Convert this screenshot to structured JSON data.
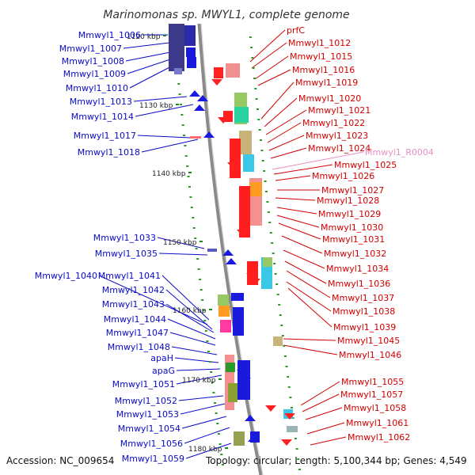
{
  "title": "Marinomonas sp. MWYL1, complete genome",
  "footer": {
    "accession": "Accession: NC_009654",
    "topology": "Topology: circular; Length: 5,100,344 bp; Genes: 4,549"
  },
  "colors": {
    "backbone": "#8a8a8a",
    "left_labels": "#0a0ac8",
    "right_labels": "#d20000",
    "pseudo_label": "#e88fbe"
  },
  "scale_labels": [
    "1120 kbp",
    "1130 kbp",
    "1140 kbp",
    "1150 kbp",
    "1160 kbp",
    "1170 kbp",
    "1180 kbp"
  ],
  "left_genes": [
    "Mmwyl1_1006",
    "Mmwyl1_1007",
    "Mmwyl1_1008",
    "Mmwyl1_1009",
    "Mmwyl1_1010",
    "Mmwyl1_1013",
    "Mmwyl1_1014",
    "Mmwyl1_1017",
    "Mmwyl1_1018",
    "Mmwyl1_1033",
    "Mmwyl1_1035",
    "Mmwyl1_1040",
    "Mmwyl1_1041",
    "Mmwyl1_1042",
    "Mmwyl1_1043",
    "Mmwyl1_1044",
    "Mmwyl1_1047",
    "Mmwyl1_1048",
    "apaH",
    "apaG",
    "Mmwyl1_1051",
    "Mmwyl1_1052",
    "Mmwyl1_1053",
    "Mmwyl1_1054",
    "Mmwyl1_1056",
    "Mmwyl1_1059"
  ],
  "right_genes": [
    "prfC",
    "Mmwyl1_1012",
    "Mmwyl1_1015",
    "Mmwyl1_1016",
    "Mmwyl1_1019",
    "Mmwyl1_1020",
    "Mmwyl1_1021",
    "Mmwyl1_1022",
    "Mmwyl1_1023",
    "Mmwyl1_1024",
    "Mmwyl1_R0004",
    "Mmwyl1_1025",
    "Mmwyl1_1026",
    "Mmwyl1_1027",
    "Mmwyl1_1028",
    "Mmwyl1_1029",
    "Mmwyl1_1030",
    "Mmwyl1_1031",
    "Mmwyl1_1032",
    "Mmwyl1_1034",
    "Mmwyl1_1036",
    "Mmwyl1_1037",
    "Mmwyl1_1038",
    "Mmwyl1_1039",
    "Mmwyl1_1045",
    "Mmwyl1_1046",
    "Mmwyl1_1055",
    "Mmwyl1_1057",
    "Mmwyl1_1058",
    "Mmwyl1_1061",
    "Mmwyl1_1062"
  ]
}
